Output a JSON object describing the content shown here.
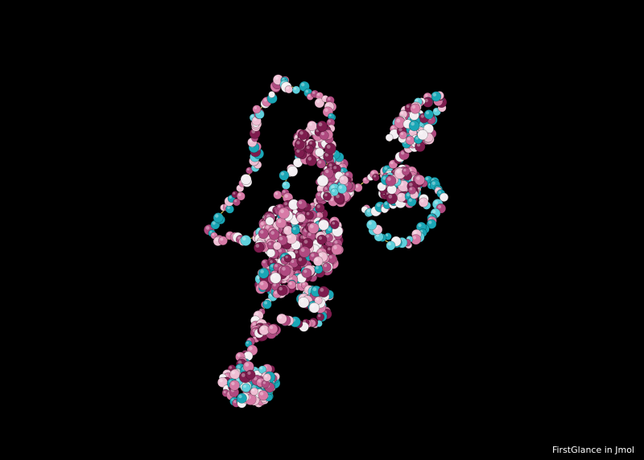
{
  "viewer": {
    "background": "#000000",
    "watermark": "FirstGlance in Jmol",
    "palette": {
      "cyan": "#1aa6b6",
      "cyan_light": "#5fd0dc",
      "white": "#f3eef2",
      "pink_light": "#efbfd4",
      "pink": "#d77aa6",
      "magenta": "#b04a80",
      "maroon": "#7e1c4e",
      "backbone": "#d9c85a"
    }
  }
}
